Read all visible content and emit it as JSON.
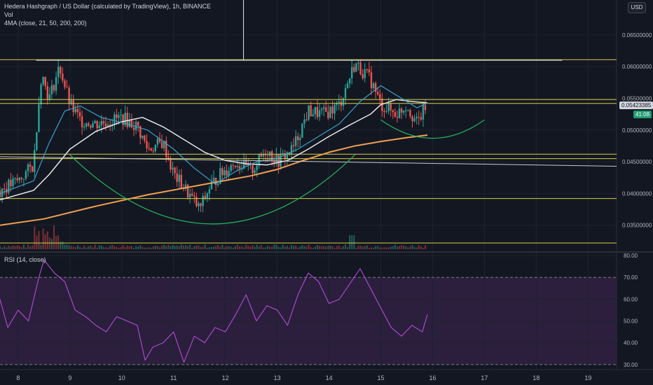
{
  "header": {
    "title": "Hedera Hashgraph / US Dollar (calculated by TradingView), 1h, BINANCE",
    "vol_label": "Vol",
    "ma_label": "4MA (close, 21, 50, 200, 200)",
    "currency_button": "USD"
  },
  "price_tags": {
    "last_price": "0.05423385",
    "countdown": "41:08"
  },
  "rsi_pane": {
    "label": "RSI (14, close)"
  },
  "colors": {
    "background": "#131722",
    "grid": "#1e2330",
    "candle_up": "#26a69a",
    "candle_down": "#ef5350",
    "ma21": "#38a2c9",
    "ma50": "#e6e6e6",
    "ma200": "#f0a050",
    "horizontal_levels": "#d8d046",
    "arcs": "#27b45a",
    "rsi_line": "#b54ad6",
    "rsi_band": "#2b1f3d"
  },
  "chart_data": [
    {
      "type": "candlestick",
      "title": "Hedera Hashgraph / US Dollar (calculated by TradingView), 1h, BINANCE",
      "x_tick_labels": [
        "8",
        "9",
        "10",
        "11",
        "12",
        "13",
        "14",
        "15",
        "16",
        "17",
        "18",
        "19"
      ],
      "y_tick_labels": [
        "0.03500000",
        "0.04000000",
        "0.04500000",
        "0.05000000",
        "0.05500000",
        "0.06000000",
        "0.06500000"
      ],
      "ylim": [
        0.031,
        0.0705
      ],
      "xlim": [
        7.65,
        19.55
      ],
      "price_series_approx": {
        "x": [
          7.65,
          8.0,
          8.3,
          8.35,
          8.45,
          8.6,
          8.8,
          9.0,
          9.2,
          9.5,
          9.8,
          10.0,
          10.3,
          10.5,
          10.8,
          11.0,
          11.2,
          11.5,
          11.7,
          11.9,
          12.2,
          12.5,
          12.8,
          13.0,
          13.3,
          13.6,
          13.9,
          14.2,
          14.5,
          14.8,
          15.0,
          15.3,
          15.5,
          15.7,
          15.9
        ],
        "y": [
          0.0405,
          0.042,
          0.0445,
          0.05,
          0.059,
          0.055,
          0.06,
          0.054,
          0.0515,
          0.051,
          0.0515,
          0.052,
          0.0505,
          0.047,
          0.048,
          0.043,
          0.041,
          0.0375,
          0.041,
          0.043,
          0.045,
          0.0435,
          0.047,
          0.045,
          0.047,
          0.053,
          0.0525,
          0.054,
          0.0605,
          0.058,
          0.054,
          0.0525,
          0.054,
          0.051,
          0.0542
        ]
      },
      "moving_averages": {
        "ma21": {
          "x": [
            7.65,
            8.3,
            8.6,
            8.9,
            9.2,
            9.6,
            10.0,
            10.5,
            11.0,
            11.4,
            11.8,
            12.2,
            12.6,
            13.0,
            13.4,
            13.8,
            14.2,
            14.6,
            15.0,
            15.4,
            15.7,
            15.9
          ],
          "y": [
            0.04,
            0.042,
            0.048,
            0.053,
            0.0538,
            0.052,
            0.0512,
            0.05,
            0.047,
            0.044,
            0.0415,
            0.0435,
            0.045,
            0.0455,
            0.047,
            0.049,
            0.051,
            0.0545,
            0.057,
            0.055,
            0.0535,
            0.0543
          ]
        },
        "ma50": {
          "x": [
            7.65,
            8.3,
            8.6,
            9.0,
            9.5,
            10.0,
            10.4,
            10.8,
            11.2,
            11.6,
            12.0,
            12.4,
            12.8,
            13.2,
            13.6,
            14.0,
            14.4,
            14.8,
            15.0,
            15.3,
            15.6,
            15.9
          ],
          "y": [
            0.039,
            0.0405,
            0.043,
            0.047,
            0.0498,
            0.0513,
            0.052,
            0.0505,
            0.0485,
            0.0465,
            0.0452,
            0.0447,
            0.0445,
            0.0452,
            0.047,
            0.049,
            0.0508,
            0.0525,
            0.054,
            0.0548,
            0.0545,
            0.0543
          ]
        },
        "ma200": {
          "x": [
            7.65,
            8.5,
            9.5,
            10.5,
            11.5,
            12.5,
            13.0,
            13.5,
            14.0,
            14.5,
            15.0,
            15.5,
            15.9
          ],
          "y": [
            0.035,
            0.036,
            0.038,
            0.0398,
            0.0413,
            0.0428,
            0.0438,
            0.0452,
            0.0465,
            0.0475,
            0.0482,
            0.0488,
            0.0492
          ]
        }
      },
      "horizontal_levels": [
        0.0611,
        0.0548,
        0.0542,
        0.0462,
        0.0455,
        0.0392,
        0.0322
      ],
      "annotations": {
        "white_horizontal_line": {
          "x_start": 8.35,
          "x_end": 18.5,
          "y": 0.061
        },
        "white_vertical_line": {
          "x": 12.35,
          "y_start": 0.0705,
          "y_end": 0.061
        },
        "white_trend_line": {
          "x_start": 7.65,
          "x_end": 19.55,
          "y_start": 0.0458,
          "y_end": 0.0443
        },
        "large_arc": {
          "x_start": 9.0,
          "x_end": 14.5,
          "y_top": 0.0461,
          "y_bottom": 0.0352
        },
        "small_arc": {
          "x_start": 15.0,
          "x_end": 17.0,
          "y_top": 0.0516,
          "y_bottom": 0.0487
        }
      },
      "volume_note": "Volume histogram along the bottom of the price pane with a spike near day 8.5 and day 14.5"
    },
    {
      "type": "line",
      "title": "RSI (14, close)",
      "y_tick_labels": [
        "30.00",
        "40.00",
        "50.00",
        "60.00",
        "70.00",
        "80.00"
      ],
      "ylim": [
        28,
        81
      ],
      "xlim": [
        7.65,
        19.55
      ],
      "band": [
        30,
        70
      ],
      "series": [
        {
          "values_x": [
            7.65,
            7.8,
            8.0,
            8.2,
            8.4,
            8.5,
            8.7,
            8.9,
            9.1,
            9.3,
            9.5,
            9.7,
            9.9,
            10.1,
            10.3,
            10.45,
            10.6,
            10.8,
            11.0,
            11.2,
            11.4,
            11.6,
            11.8,
            12.0,
            12.2,
            12.4,
            12.6,
            12.8,
            13.0,
            13.2,
            13.4,
            13.6,
            13.8,
            14.0,
            14.2,
            14.4,
            14.6,
            14.8,
            15.0,
            15.2,
            15.4,
            15.6,
            15.8,
            15.9
          ],
          "values": [
            60,
            47,
            55,
            50,
            70,
            78,
            72,
            68,
            55,
            52,
            48,
            45,
            52,
            50,
            48,
            32,
            38,
            40,
            45,
            31,
            43,
            40,
            47,
            45,
            53,
            62,
            50,
            57,
            55,
            48,
            62,
            72,
            68,
            58,
            60,
            67,
            74,
            65,
            56,
            47,
            43,
            48,
            45,
            53
          ]
        }
      ]
    }
  ]
}
